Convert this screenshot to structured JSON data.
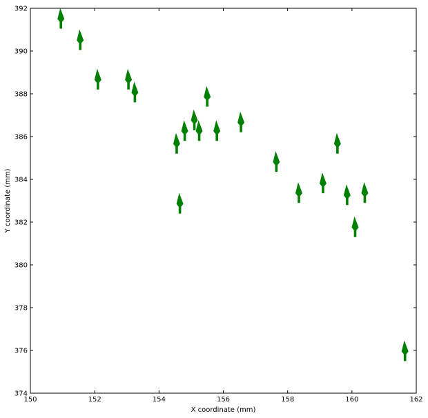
{
  "chart_data": {
    "type": "quiver",
    "title": "",
    "xlabel": "X coordinate (mm)",
    "ylabel": "Y coordinate (mm)",
    "xlim": [
      150,
      162
    ],
    "ylim": [
      374,
      392
    ],
    "xticks": [
      150,
      152,
      154,
      156,
      158,
      160,
      162
    ],
    "yticks": [
      374,
      376,
      378,
      380,
      382,
      384,
      386,
      388,
      390,
      392
    ],
    "grid": false,
    "legend": "none",
    "arrow_color": "#008000",
    "arrow_direction": "up",
    "points": [
      {
        "x": 150.95,
        "y": 391.05
      },
      {
        "x": 151.55,
        "y": 390.05
      },
      {
        "x": 152.1,
        "y": 388.2
      },
      {
        "x": 153.05,
        "y": 388.2
      },
      {
        "x": 153.25,
        "y": 387.6
      },
      {
        "x": 155.5,
        "y": 387.4
      },
      {
        "x": 155.1,
        "y": 386.3
      },
      {
        "x": 156.55,
        "y": 386.2
      },
      {
        "x": 154.8,
        "y": 385.8
      },
      {
        "x": 155.25,
        "y": 385.8
      },
      {
        "x": 155.8,
        "y": 385.8
      },
      {
        "x": 154.55,
        "y": 385.2
      },
      {
        "x": 159.55,
        "y": 385.2
      },
      {
        "x": 157.65,
        "y": 384.35
      },
      {
        "x": 159.1,
        "y": 383.35
      },
      {
        "x": 158.35,
        "y": 382.9
      },
      {
        "x": 159.85,
        "y": 382.8
      },
      {
        "x": 160.4,
        "y": 382.9
      },
      {
        "x": 154.65,
        "y": 382.4
      },
      {
        "x": 160.1,
        "y": 381.3
      },
      {
        "x": 161.65,
        "y": 375.5
      }
    ]
  }
}
